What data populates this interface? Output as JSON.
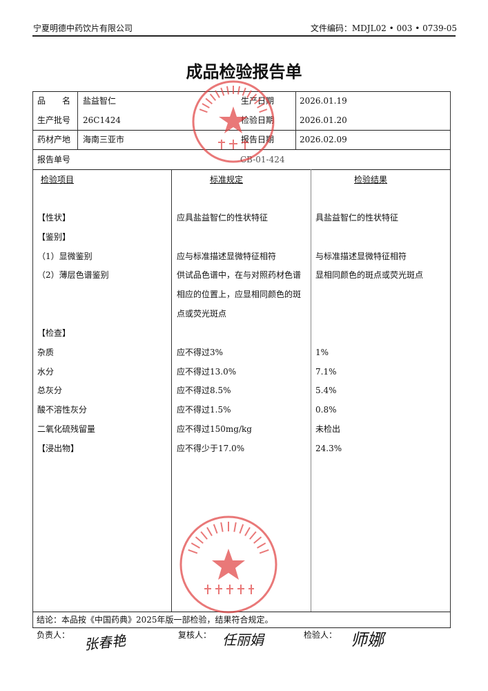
{
  "header": {
    "company": "宁夏明德中药饮片有限公司",
    "doc_code": "文件编码：MDJL02 • 003 • 0739-05"
  },
  "title": "成品检验报告单",
  "info": {
    "name_label": "品　　名",
    "name": "盐益智仁",
    "batch_label": "生产批号",
    "batch": "26C1424",
    "origin_label": "药材产地",
    "origin": "海南三亚市",
    "prod_date_label": "生产日期",
    "prod_date": "2026.01.19",
    "test_date_label": "检验日期",
    "test_date": "2026.01.20",
    "report_date_label": "报告日期",
    "report_date": "2026.02.09",
    "report_no_label": "报告单号",
    "report_no": "CB-01-424"
  },
  "columns": [
    "检验项目",
    "标准规定",
    "检验结果"
  ],
  "rows": [
    {
      "item": "【性状】",
      "standard": "应具盐益智仁的性状特征",
      "result": "具盐益智仁的性状特征"
    },
    {
      "item": "【鉴别】",
      "standard": "",
      "result": ""
    },
    {
      "item": "（1）显微鉴别",
      "standard": "应与标准描述显微特征相符",
      "result": "与标准描述显微特征相符"
    },
    {
      "item": "（2）薄层色谱鉴别",
      "standard": "供试品色谱中，在与对照药材色谱",
      "result": "显相同颜色的斑点或荧光斑点"
    },
    {
      "item": "",
      "standard": "相应的位置上，应显相同颜色的斑",
      "result": ""
    },
    {
      "item": "",
      "standard": "点或荧光斑点",
      "result": ""
    },
    {
      "item": "【检查】",
      "standard": "",
      "result": ""
    },
    {
      "item": "杂质",
      "standard": "应不得过3%",
      "result": "1%"
    },
    {
      "item": "水分",
      "standard": "应不得过13.0%",
      "result": "7.1%"
    },
    {
      "item": "总灰分",
      "standard": "应不得过8.5%",
      "result": "5.4%"
    },
    {
      "item": "酸不溶性灰分",
      "standard": "应不得过1.5%",
      "result": "0.8%"
    },
    {
      "item": "二氧化硫残留量",
      "standard": "应不得过150mg/kg",
      "result": "未检出"
    },
    {
      "item": "【浸出物】",
      "standard": "应不得少于17.0%",
      "result": "24.3%"
    }
  ],
  "conclusion": "结论：本品按《中国药典》2025年版一部检验，结果符合规定。",
  "signatures": {
    "responsible_label": "负责人：",
    "responsible": "张春艳",
    "reviewer_label": "复核人：",
    "reviewer": "任丽娟",
    "inspector_label": "检验人：",
    "inspector": "师娜"
  },
  "stamps": {
    "top": "宁夏明德中药饮片有限公司 质量部",
    "bottom": "宁夏明德中药饮片有限公司 质检专用章",
    "color": "#e04040"
  }
}
